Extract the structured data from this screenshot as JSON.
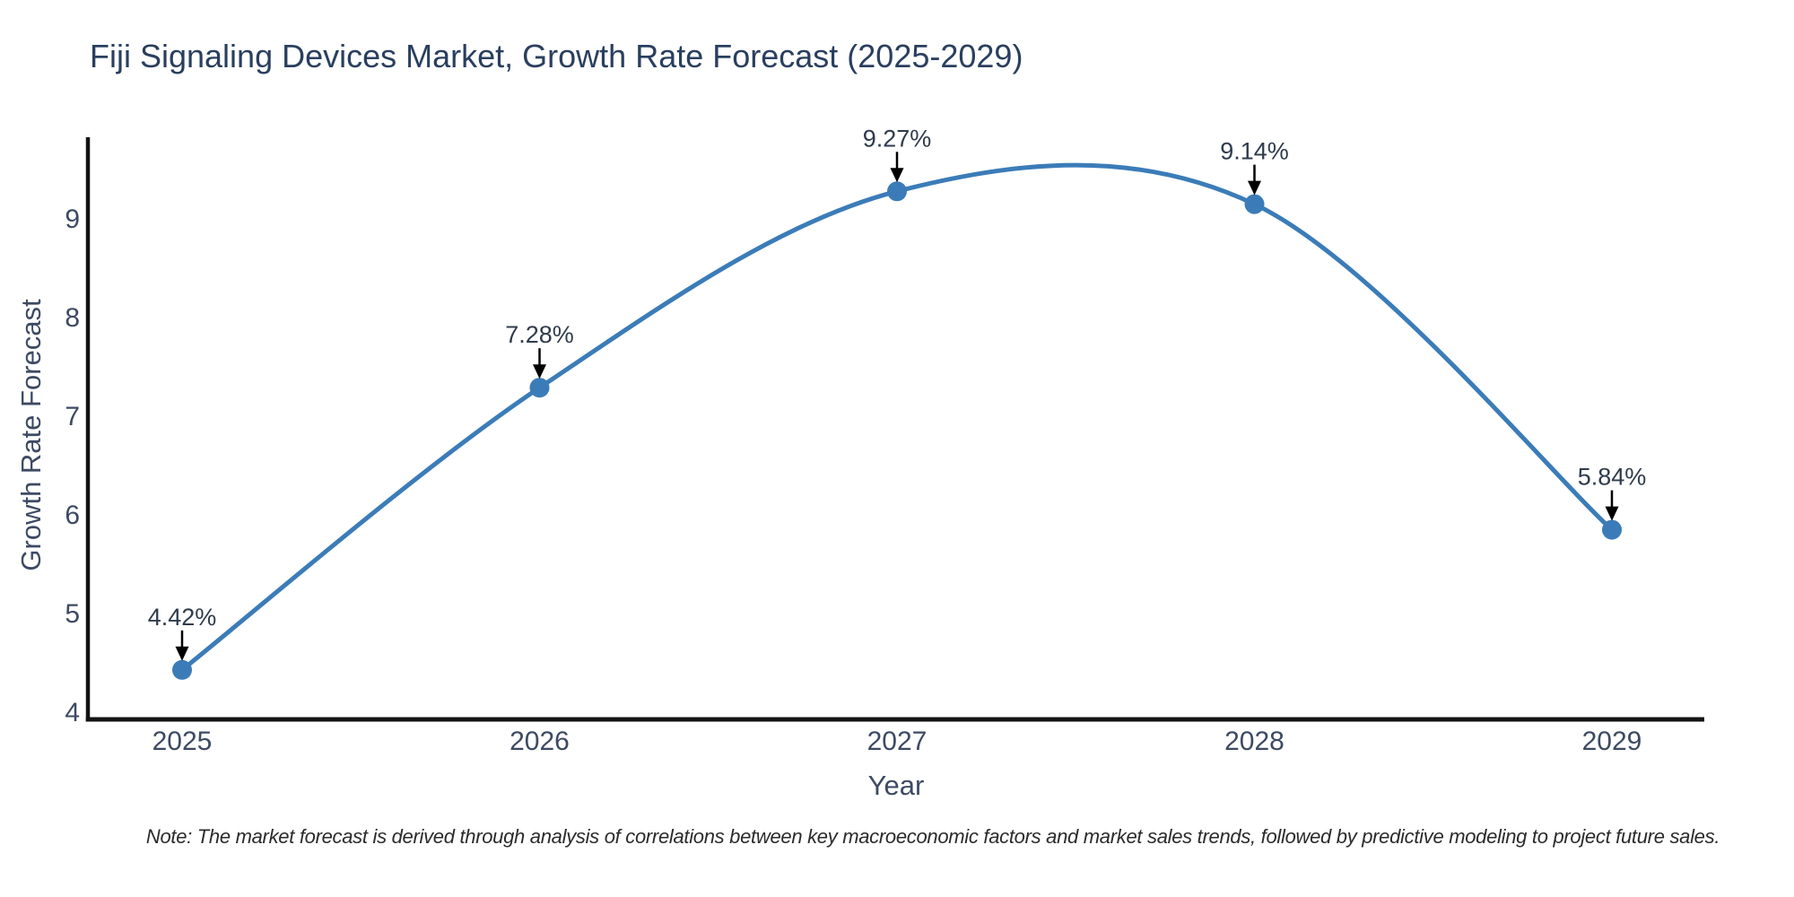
{
  "title": "Fiji Signaling Devices Market, Growth Rate Forecast (2025-2029)",
  "note": "Note: The market forecast is derived through analysis of correlations between key macroeconomic factors and market sales trends, followed by predictive modeling to project future sales.",
  "colors": {
    "title": "#2a3f5f",
    "tick": "#3d4a63",
    "annotation": "#2f3b4c",
    "axis": "#131313",
    "arrow": "#000000",
    "note": "#2b2b2b"
  },
  "chart_data": {
    "type": "line",
    "title": "Fiji Signaling Devices Market, Growth Rate Forecast (2025-2029)",
    "xlabel": "Year",
    "ylabel": "Growth Rate Forecast",
    "x": [
      2025,
      2026,
      2027,
      2028,
      2029
    ],
    "values": [
      4.42,
      7.28,
      9.27,
      9.14,
      5.84
    ],
    "point_labels": [
      "4.42%",
      "7.28%",
      "9.27%",
      "9.14%",
      "5.84%"
    ],
    "yticks": [
      4,
      5,
      6,
      7,
      8,
      9
    ],
    "ylim": [
      3.92,
      9.8
    ],
    "xlim": [
      2024.74,
      2029.26
    ],
    "line_shape": "spline",
    "line_color": "#3b7cb8",
    "marker_color": "#3b7cb8",
    "marker_size": 11,
    "grid": false,
    "legend": "none",
    "annotations_have_arrows": true
  }
}
